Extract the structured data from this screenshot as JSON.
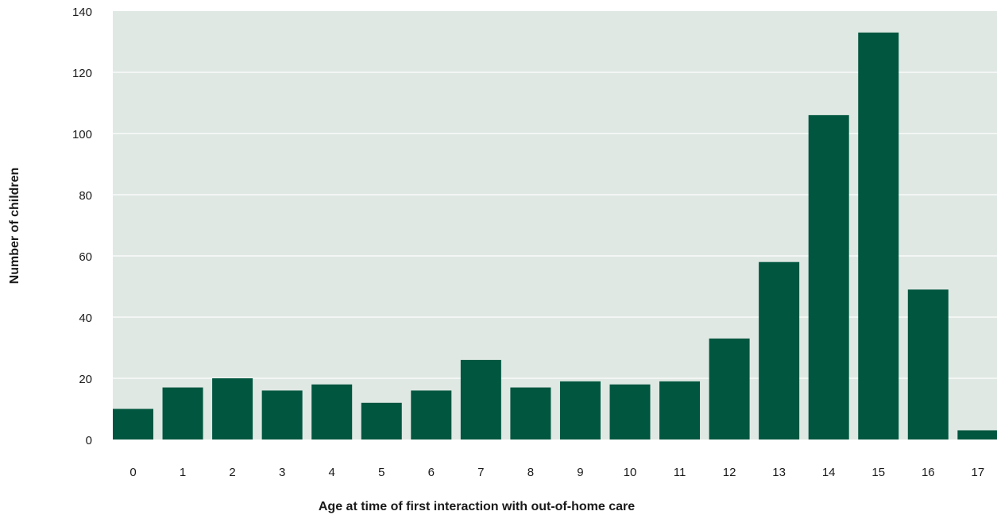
{
  "chart_data": {
    "type": "bar",
    "title": "",
    "xlabel": "Age at time of first interaction with out-of-home care",
    "ylabel": "Number of children",
    "categories": [
      "0",
      "1",
      "2",
      "3",
      "4",
      "5",
      "6",
      "7",
      "8",
      "9",
      "10",
      "11",
      "12",
      "13",
      "14",
      "15",
      "16",
      "17"
    ],
    "values": [
      10,
      17,
      20,
      16,
      18,
      12,
      16,
      26,
      17,
      19,
      18,
      19,
      33,
      58,
      106,
      133,
      49,
      3
    ],
    "ylim": [
      0,
      140
    ],
    "yticks": [
      "0",
      "20",
      "40",
      "60",
      "80",
      "100",
      "120",
      "140"
    ],
    "grid": true,
    "legend": "none",
    "colors": {
      "bar": "#00563f",
      "plot_background": "#dfe8e3",
      "gridline": "#ffffff"
    }
  }
}
